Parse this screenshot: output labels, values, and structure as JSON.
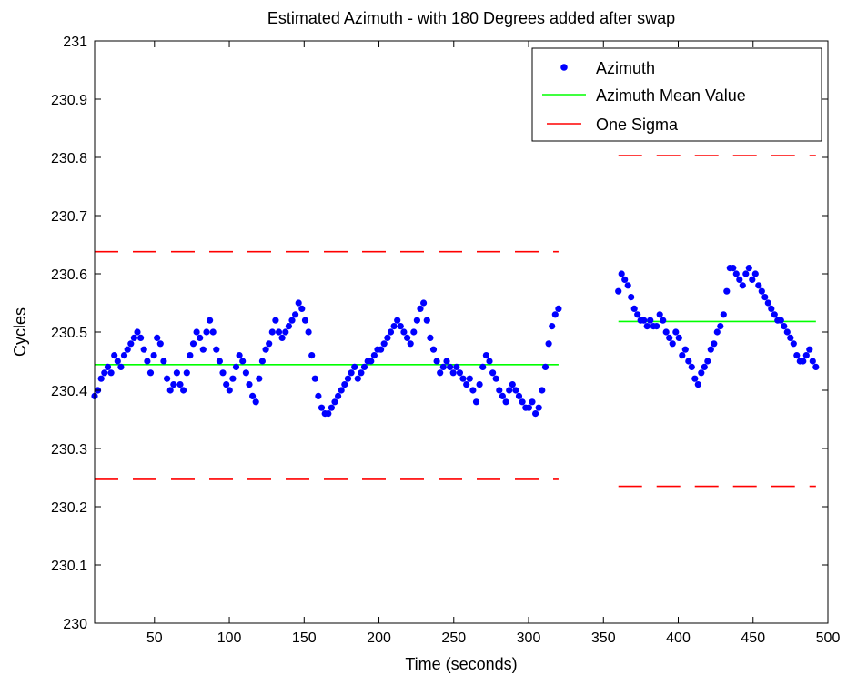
{
  "chart_data": {
    "type": "scatter",
    "title": "Estimated Azimuth - with 180 Degrees added after swap",
    "xlabel": "Time (seconds)",
    "ylabel": "Cycles",
    "xlim": [
      10,
      500
    ],
    "ylim": [
      230,
      231
    ],
    "xticks": [
      50,
      100,
      150,
      200,
      250,
      300,
      350,
      400,
      450,
      500
    ],
    "yticks": [
      230,
      230.1,
      230.2,
      230.3,
      230.4,
      230.5,
      230.6,
      230.7,
      230.8,
      230.9,
      231
    ],
    "grid": false,
    "legend_position": "top-right",
    "colors": {
      "azimuth": "#0000ff",
      "mean": "#00ff00",
      "sigma": "#ff0000"
    },
    "series": [
      {
        "name": "Azimuth",
        "style": "dots",
        "segments": [
          {
            "x_start": 10,
            "x_end": 320,
            "values": [
              230.39,
              230.4,
              230.42,
              230.43,
              230.44,
              230.43,
              230.46,
              230.45,
              230.44,
              230.46,
              230.47,
              230.48,
              230.49,
              230.5,
              230.49,
              230.47,
              230.45,
              230.43,
              230.46,
              230.49,
              230.48,
              230.45,
              230.42,
              230.4,
              230.41,
              230.43,
              230.41,
              230.4,
              230.43,
              230.46,
              230.48,
              230.5,
              230.49,
              230.47,
              230.5,
              230.52,
              230.5,
              230.47,
              230.45,
              230.43,
              230.41,
              230.4,
              230.42,
              230.44,
              230.46,
              230.45,
              230.43,
              230.41,
              230.39,
              230.38,
              230.42,
              230.45,
              230.47,
              230.48,
              230.5,
              230.52,
              230.5,
              230.49,
              230.5,
              230.51,
              230.52,
              230.53,
              230.55,
              230.54,
              230.52,
              230.5,
              230.46,
              230.42,
              230.39,
              230.37,
              230.36,
              230.36,
              230.37,
              230.38,
              230.39,
              230.4,
              230.41,
              230.42,
              230.43,
              230.44,
              230.42,
              230.43,
              230.44,
              230.45,
              230.45,
              230.46,
              230.47,
              230.47,
              230.48,
              230.49,
              230.5,
              230.51,
              230.52,
              230.51,
              230.5,
              230.49,
              230.48,
              230.5,
              230.52,
              230.54,
              230.55,
              230.52,
              230.49,
              230.47,
              230.45,
              230.43,
              230.44,
              230.45,
              230.44,
              230.43,
              230.44,
              230.43,
              230.42,
              230.41,
              230.42,
              230.4,
              230.38,
              230.41,
              230.44,
              230.46,
              230.45,
              230.43,
              230.42,
              230.4,
              230.39,
              230.38,
              230.4,
              230.41,
              230.4,
              230.39,
              230.38,
              230.37,
              230.37,
              230.38,
              230.36,
              230.37,
              230.4,
              230.44,
              230.48,
              230.51,
              230.53,
              230.54
            ]
          },
          {
            "x_start": 360,
            "x_end": 492,
            "values": [
              230.57,
              230.6,
              230.59,
              230.58,
              230.56,
              230.54,
              230.53,
              230.52,
              230.52,
              230.51,
              230.52,
              230.51,
              230.51,
              230.53,
              230.52,
              230.5,
              230.49,
              230.48,
              230.5,
              230.49,
              230.46,
              230.47,
              230.45,
              230.44,
              230.42,
              230.41,
              230.43,
              230.44,
              230.45,
              230.47,
              230.48,
              230.5,
              230.51,
              230.53,
              230.57,
              230.61,
              230.61,
              230.6,
              230.59,
              230.58,
              230.6,
              230.61,
              230.59,
              230.6,
              230.58,
              230.57,
              230.56,
              230.55,
              230.54,
              230.53,
              230.52,
              230.52,
              230.51,
              230.5,
              230.49,
              230.48,
              230.46,
              230.45,
              230.45,
              230.46,
              230.47,
              230.45,
              230.44
            ]
          }
        ]
      },
      {
        "name": "Azimuth Mean Value",
        "style": "solid-line",
        "segments": [
          {
            "x": [
              10,
              320
            ],
            "y": 230.444
          },
          {
            "x": [
              360,
              492
            ],
            "y": 230.518
          }
        ]
      },
      {
        "name": "One Sigma",
        "style": "dashed-line",
        "segments": [
          {
            "x": [
              10,
              320
            ],
            "y": 230.638
          },
          {
            "x": [
              10,
              320
            ],
            "y": 230.247
          },
          {
            "x": [
              360,
              492
            ],
            "y": 230.803
          },
          {
            "x": [
              360,
              492
            ],
            "y": 230.235
          }
        ]
      }
    ]
  }
}
